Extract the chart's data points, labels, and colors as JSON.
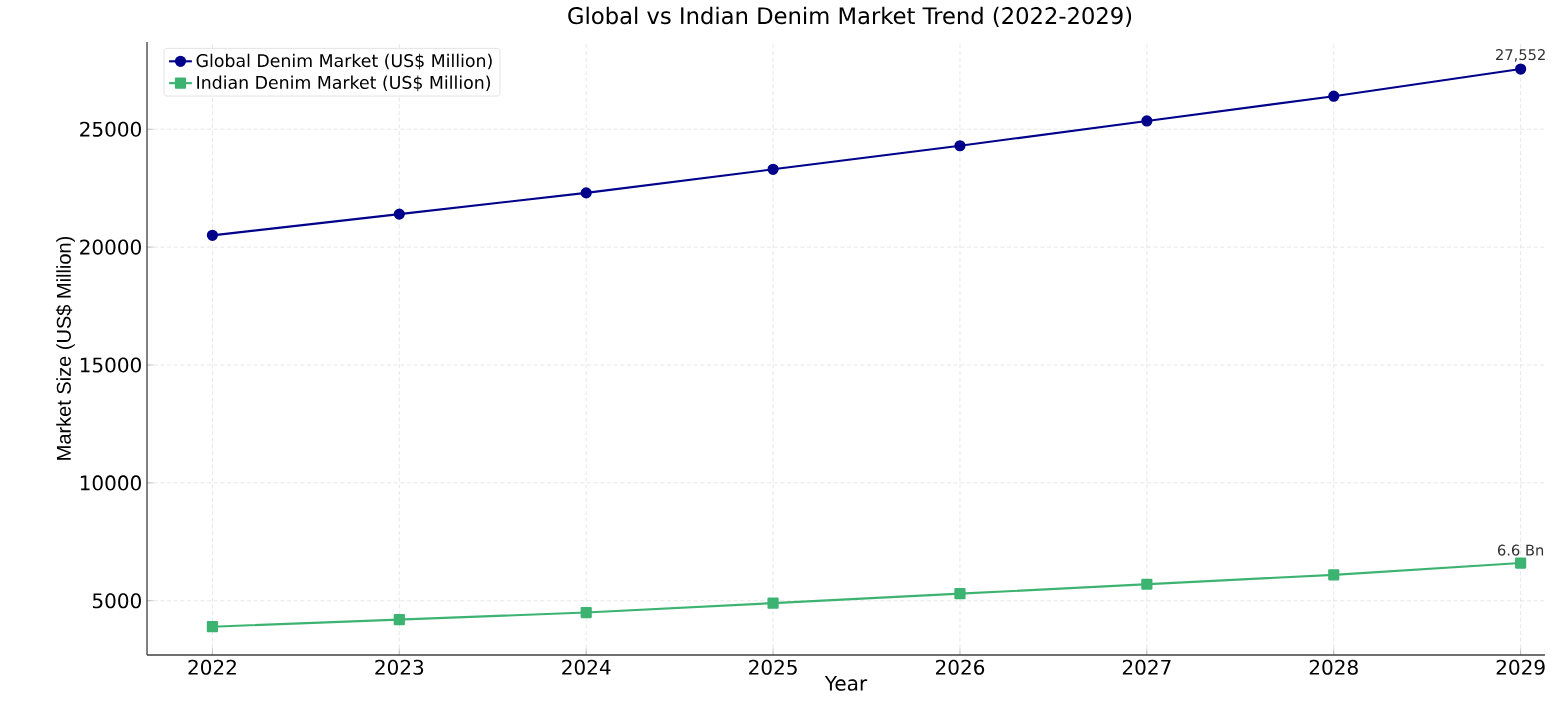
{
  "chart_data": {
    "type": "line",
    "title": "Global vs Indian Denim Market Trend (2022-2029)",
    "xlabel": "Year",
    "ylabel": "Market Size (US$ Million)",
    "categories": [
      "2022",
      "2023",
      "2024",
      "2025",
      "2026",
      "2027",
      "2028",
      "2029"
    ],
    "series": [
      {
        "name": "Global Denim Market (US$ Million)",
        "color": "#00008b",
        "marker": "circle",
        "values": [
          20500,
          21400,
          22300,
          23300,
          24300,
          25350,
          26400,
          27552
        ]
      },
      {
        "name": "Indian Denim Market (US$ Million)",
        "color": "#3cb371",
        "marker": "square",
        "values": [
          3900,
          4200,
          4500,
          4900,
          5300,
          5700,
          6100,
          6600
        ]
      }
    ],
    "ylim": [
      2700,
      28700
    ],
    "yticks": [
      5000,
      10000,
      15000,
      20000,
      25000
    ],
    "annotations": [
      {
        "text": "27,552",
        "x": "2029",
        "y": 27552
      },
      {
        "text": "6.6 Bn",
        "x": "2029",
        "y": 6600
      }
    ],
    "grid": true,
    "legend": "top left",
    "line_style": "solid"
  }
}
